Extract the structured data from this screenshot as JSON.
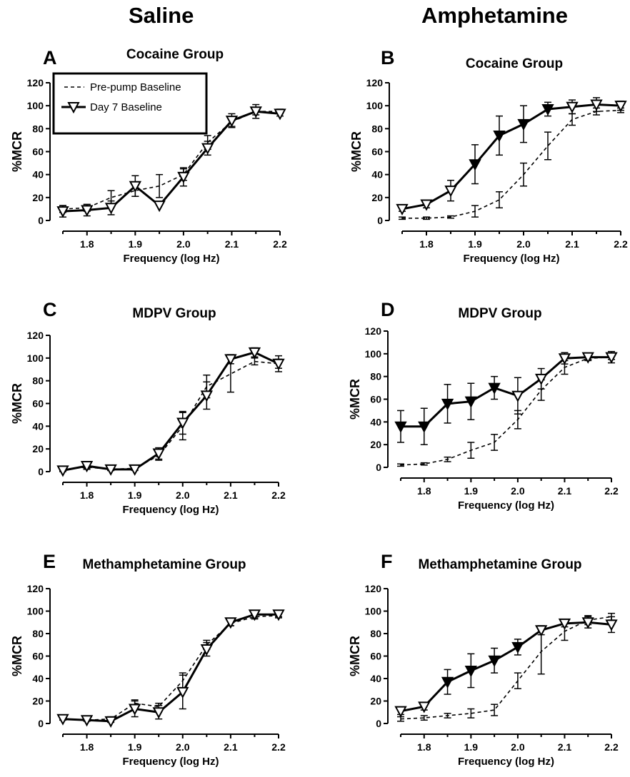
{
  "column_titles": {
    "left": "Saline",
    "right": "Amphetamine"
  },
  "legend": {
    "dashed": "Pre-pump Baseline",
    "marker": "Day 7 Baseline"
  },
  "chart_data": [
    {
      "type": "line",
      "panel": "A",
      "title": "Cocaine Group",
      "xlabel": "Frequency (log Hz)",
      "ylabel": "%MCR",
      "xlim": [
        1.75,
        2.2
      ],
      "ylim": [
        0,
        120
      ],
      "xticks": [
        "1.8",
        "1.9",
        "2.0",
        "2.1",
        "2.2"
      ],
      "yticks": [
        "0",
        "20",
        "40",
        "60",
        "80",
        "100",
        "120"
      ],
      "x": [
        1.75,
        1.8,
        1.85,
        1.9,
        1.95,
        2.0,
        2.05,
        2.1,
        2.15,
        2.2
      ],
      "series": [
        {
          "name": "Pre-pump Baseline",
          "style": "dashed",
          "values": [
            10,
            11,
            20,
            26,
            30,
            40,
            68,
            86,
            95,
            95
          ],
          "error": [
            3,
            3,
            6,
            5,
            10,
            5,
            6,
            4,
            3,
            2
          ]
        },
        {
          "name": "Day 7 Baseline",
          "style": "open",
          "values": [
            8,
            9,
            11,
            30,
            13,
            38,
            63,
            87,
            95,
            93
          ],
          "error": [
            5,
            5,
            6,
            9,
            0,
            8,
            6,
            6,
            6,
            2
          ]
        }
      ],
      "legend": "top-left"
    },
    {
      "type": "line",
      "panel": "B",
      "title": "Cocaine Group",
      "xlabel": "Frequency (log Hz)",
      "ylabel": "%MCR",
      "xlim": [
        1.75,
        2.2
      ],
      "ylim": [
        0,
        120
      ],
      "xticks": [
        "1.8",
        "1.9",
        "2.0",
        "2.1",
        "2.2"
      ],
      "yticks": [
        "0",
        "20",
        "40",
        "60",
        "80",
        "100",
        "120"
      ],
      "x": [
        1.75,
        1.8,
        1.85,
        1.9,
        1.95,
        2.0,
        2.05,
        2.1,
        2.15,
        2.2
      ],
      "series": [
        {
          "name": "Pre-pump Baseline",
          "style": "dashed",
          "values": [
            2,
            2,
            3,
            8,
            18,
            40,
            65,
            88,
            95,
            96
          ],
          "error": [
            1,
            1,
            1,
            5,
            7,
            10,
            12,
            5,
            3,
            2
          ]
        },
        {
          "name": "Day 7 Baseline",
          "style": "mixed",
          "values": [
            10,
            14,
            26,
            49,
            74,
            84,
            97,
            99,
            101,
            100
          ],
          "error": [
            2,
            3,
            9,
            17,
            17,
            16,
            6,
            6,
            6,
            4
          ]
        }
      ],
      "filled": [
        false,
        false,
        false,
        true,
        true,
        true,
        true,
        false,
        false,
        false
      ]
    },
    {
      "type": "line",
      "panel": "C",
      "title": "MDPV Group",
      "xlabel": "Frequency (log Hz)",
      "ylabel": "%MCR",
      "xlim": [
        1.75,
        2.2
      ],
      "ylim": [
        0,
        120
      ],
      "xticks": [
        "1.8",
        "1.9",
        "2.0",
        "2.1",
        "2.2"
      ],
      "yticks": [
        "0",
        "20",
        "40",
        "60",
        "80",
        "100",
        "120"
      ],
      "x": [
        1.75,
        1.8,
        1.85,
        1.9,
        1.95,
        2.0,
        2.05,
        2.1,
        2.15,
        2.2
      ],
      "series": [
        {
          "name": "Pre-pump Baseline",
          "style": "dashed",
          "values": [
            2,
            4,
            2,
            3,
            14,
            40,
            75,
            86,
            97,
            95
          ],
          "error": [
            1,
            2,
            1,
            1,
            4,
            12,
            10,
            16,
            3,
            4
          ]
        },
        {
          "name": "Day 7 Baseline",
          "style": "open",
          "values": [
            1,
            5,
            2,
            2,
            16,
            43,
            67,
            99,
            105,
            95
          ],
          "error": [
            1,
            2,
            1,
            1,
            5,
            10,
            12,
            4,
            4,
            7
          ]
        }
      ]
    },
    {
      "type": "line",
      "panel": "D",
      "title": "MDPV Group",
      "xlabel": "Frequency (log Hz)",
      "ylabel": "%MCR",
      "xlim": [
        1.75,
        2.2
      ],
      "ylim": [
        0,
        120
      ],
      "xticks": [
        "1.8",
        "1.9",
        "2.0",
        "2.1",
        "2.2"
      ],
      "yticks": [
        "0",
        "20",
        "40",
        "60",
        "80",
        "100",
        "120"
      ],
      "x": [
        1.75,
        1.8,
        1.85,
        1.9,
        1.95,
        2.0,
        2.05,
        2.1,
        2.15,
        2.2
      ],
      "series": [
        {
          "name": "Pre-pump Baseline",
          "style": "dashed",
          "values": [
            2,
            3,
            7,
            15,
            22,
            42,
            68,
            88,
            96,
            97
          ],
          "error": [
            1,
            1,
            2,
            7,
            7,
            8,
            9,
            6,
            2,
            2
          ]
        },
        {
          "name": "Day 7 Baseline",
          "style": "mixed",
          "values": [
            36,
            36,
            56,
            58,
            70,
            63,
            78,
            96,
            97,
            97
          ],
          "error": [
            14,
            16,
            17,
            16,
            10,
            16,
            9,
            5,
            2,
            5
          ]
        }
      ],
      "filled": [
        true,
        true,
        true,
        true,
        true,
        false,
        false,
        false,
        false,
        false
      ]
    },
    {
      "type": "line",
      "panel": "E",
      "title": "Methamphetamine Group",
      "xlabel": "Frequency (log Hz)",
      "ylabel": "%MCR",
      "xlim": [
        1.75,
        2.2
      ],
      "ylim": [
        0,
        120
      ],
      "xticks": [
        "1.8",
        "1.9",
        "2.0",
        "2.1",
        "2.2"
      ],
      "yticks": [
        "0",
        "20",
        "40",
        "60",
        "80",
        "100",
        "120"
      ],
      "x": [
        1.75,
        1.8,
        1.85,
        1.9,
        1.95,
        2.0,
        2.05,
        2.1,
        2.15,
        2.2
      ],
      "series": [
        {
          "name": "Pre-pump Baseline",
          "style": "dashed",
          "values": [
            4,
            3,
            4,
            18,
            15,
            38,
            70,
            89,
            95,
            96
          ],
          "error": [
            1,
            1,
            2,
            3,
            3,
            7,
            4,
            2,
            2,
            2
          ]
        },
        {
          "name": "Day 7 Baseline",
          "style": "open",
          "values": [
            4,
            3,
            2,
            13,
            10,
            28,
            66,
            90,
            97,
            97
          ],
          "error": [
            1,
            1,
            1,
            7,
            6,
            15,
            6,
            3,
            3,
            2
          ]
        }
      ]
    },
    {
      "type": "line",
      "panel": "F",
      "title": "Methamphetamine Group",
      "xlabel": "Frequency (log Hz)",
      "ylabel": "%MCR",
      "xlim": [
        1.75,
        2.2
      ],
      "ylim": [
        0,
        120
      ],
      "xticks": [
        "1.8",
        "1.9",
        "2.0",
        "2.1",
        "2.2"
      ],
      "yticks": [
        "0",
        "20",
        "40",
        "60",
        "80",
        "100",
        "120"
      ],
      "x": [
        1.75,
        1.8,
        1.85,
        1.9,
        1.95,
        2.0,
        2.05,
        2.1,
        2.15,
        2.2
      ],
      "series": [
        {
          "name": "Pre-pump Baseline",
          "style": "dashed",
          "values": [
            4,
            5,
            7,
            9,
            12,
            38,
            64,
            82,
            92,
            95
          ],
          "error": [
            2,
            2,
            2,
            4,
            5,
            7,
            20,
            8,
            4,
            3
          ]
        },
        {
          "name": "Day 7 Baseline",
          "style": "mixed",
          "values": [
            11,
            15,
            37,
            47,
            56,
            68,
            83,
            89,
            90,
            88
          ],
          "error": [
            3,
            3,
            11,
            15,
            11,
            7,
            4,
            3,
            5,
            7
          ]
        }
      ],
      "filled": [
        false,
        false,
        true,
        true,
        true,
        true,
        false,
        false,
        false,
        false
      ]
    }
  ]
}
